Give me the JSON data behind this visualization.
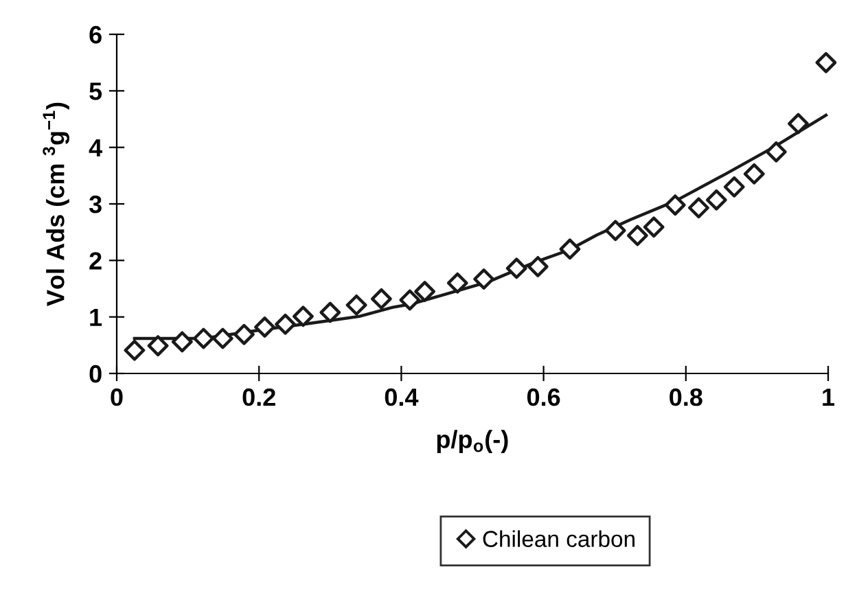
{
  "chart_data": {
    "type": "scatter",
    "xlabel": "p/p$_{o}$(-)",
    "ylabel": "Vol Ads (cm $^{3}$g$^{−1}$)",
    "xlim": [
      0,
      1
    ],
    "ylim": [
      0,
      6
    ],
    "xticks": [
      0,
      0.2,
      0.4,
      0.6,
      0.8,
      1
    ],
    "yticks": [
      0,
      1,
      2,
      3,
      4,
      5,
      6
    ],
    "grid": false,
    "legend": "bottom",
    "series": [
      {
        "name": "Chilean carbon",
        "marker": "diamond",
        "color": "#1a1a1a",
        "x": [
          0.025,
          0.058,
          0.092,
          0.122,
          0.149,
          0.179,
          0.208,
          0.237,
          0.262,
          0.3,
          0.337,
          0.372,
          0.412,
          0.433,
          0.479,
          0.516,
          0.562,
          0.592,
          0.637,
          0.701,
          0.732,
          0.755,
          0.785,
          0.818,
          0.843,
          0.868,
          0.896,
          0.927,
          0.958,
          0.997
        ],
        "values": [
          0.41,
          0.49,
          0.56,
          0.62,
          0.62,
          0.69,
          0.82,
          0.87,
          1.01,
          1.08,
          1.21,
          1.32,
          1.3,
          1.45,
          1.6,
          1.67,
          1.86,
          1.89,
          2.2,
          2.53,
          2.44,
          2.59,
          2.98,
          2.93,
          3.07,
          3.3,
          3.53,
          3.92,
          4.42,
          5.5
        ]
      },
      {
        "type": "line",
        "marker": "none",
        "line_style": "solid",
        "color": "#1a1a1a",
        "x": [
          0.025,
          0.122,
          0.208,
          0.268,
          0.341,
          0.388,
          0.415,
          0.462,
          0.522,
          0.588,
          0.635,
          0.675,
          0.722,
          0.785,
          0.856,
          0.923,
          0.997
        ],
        "values": [
          0.62,
          0.62,
          0.78,
          0.88,
          1.01,
          1.17,
          1.23,
          1.4,
          1.62,
          1.97,
          2.18,
          2.45,
          2.72,
          3.05,
          3.53,
          4.0,
          4.57
        ]
      }
    ]
  }
}
